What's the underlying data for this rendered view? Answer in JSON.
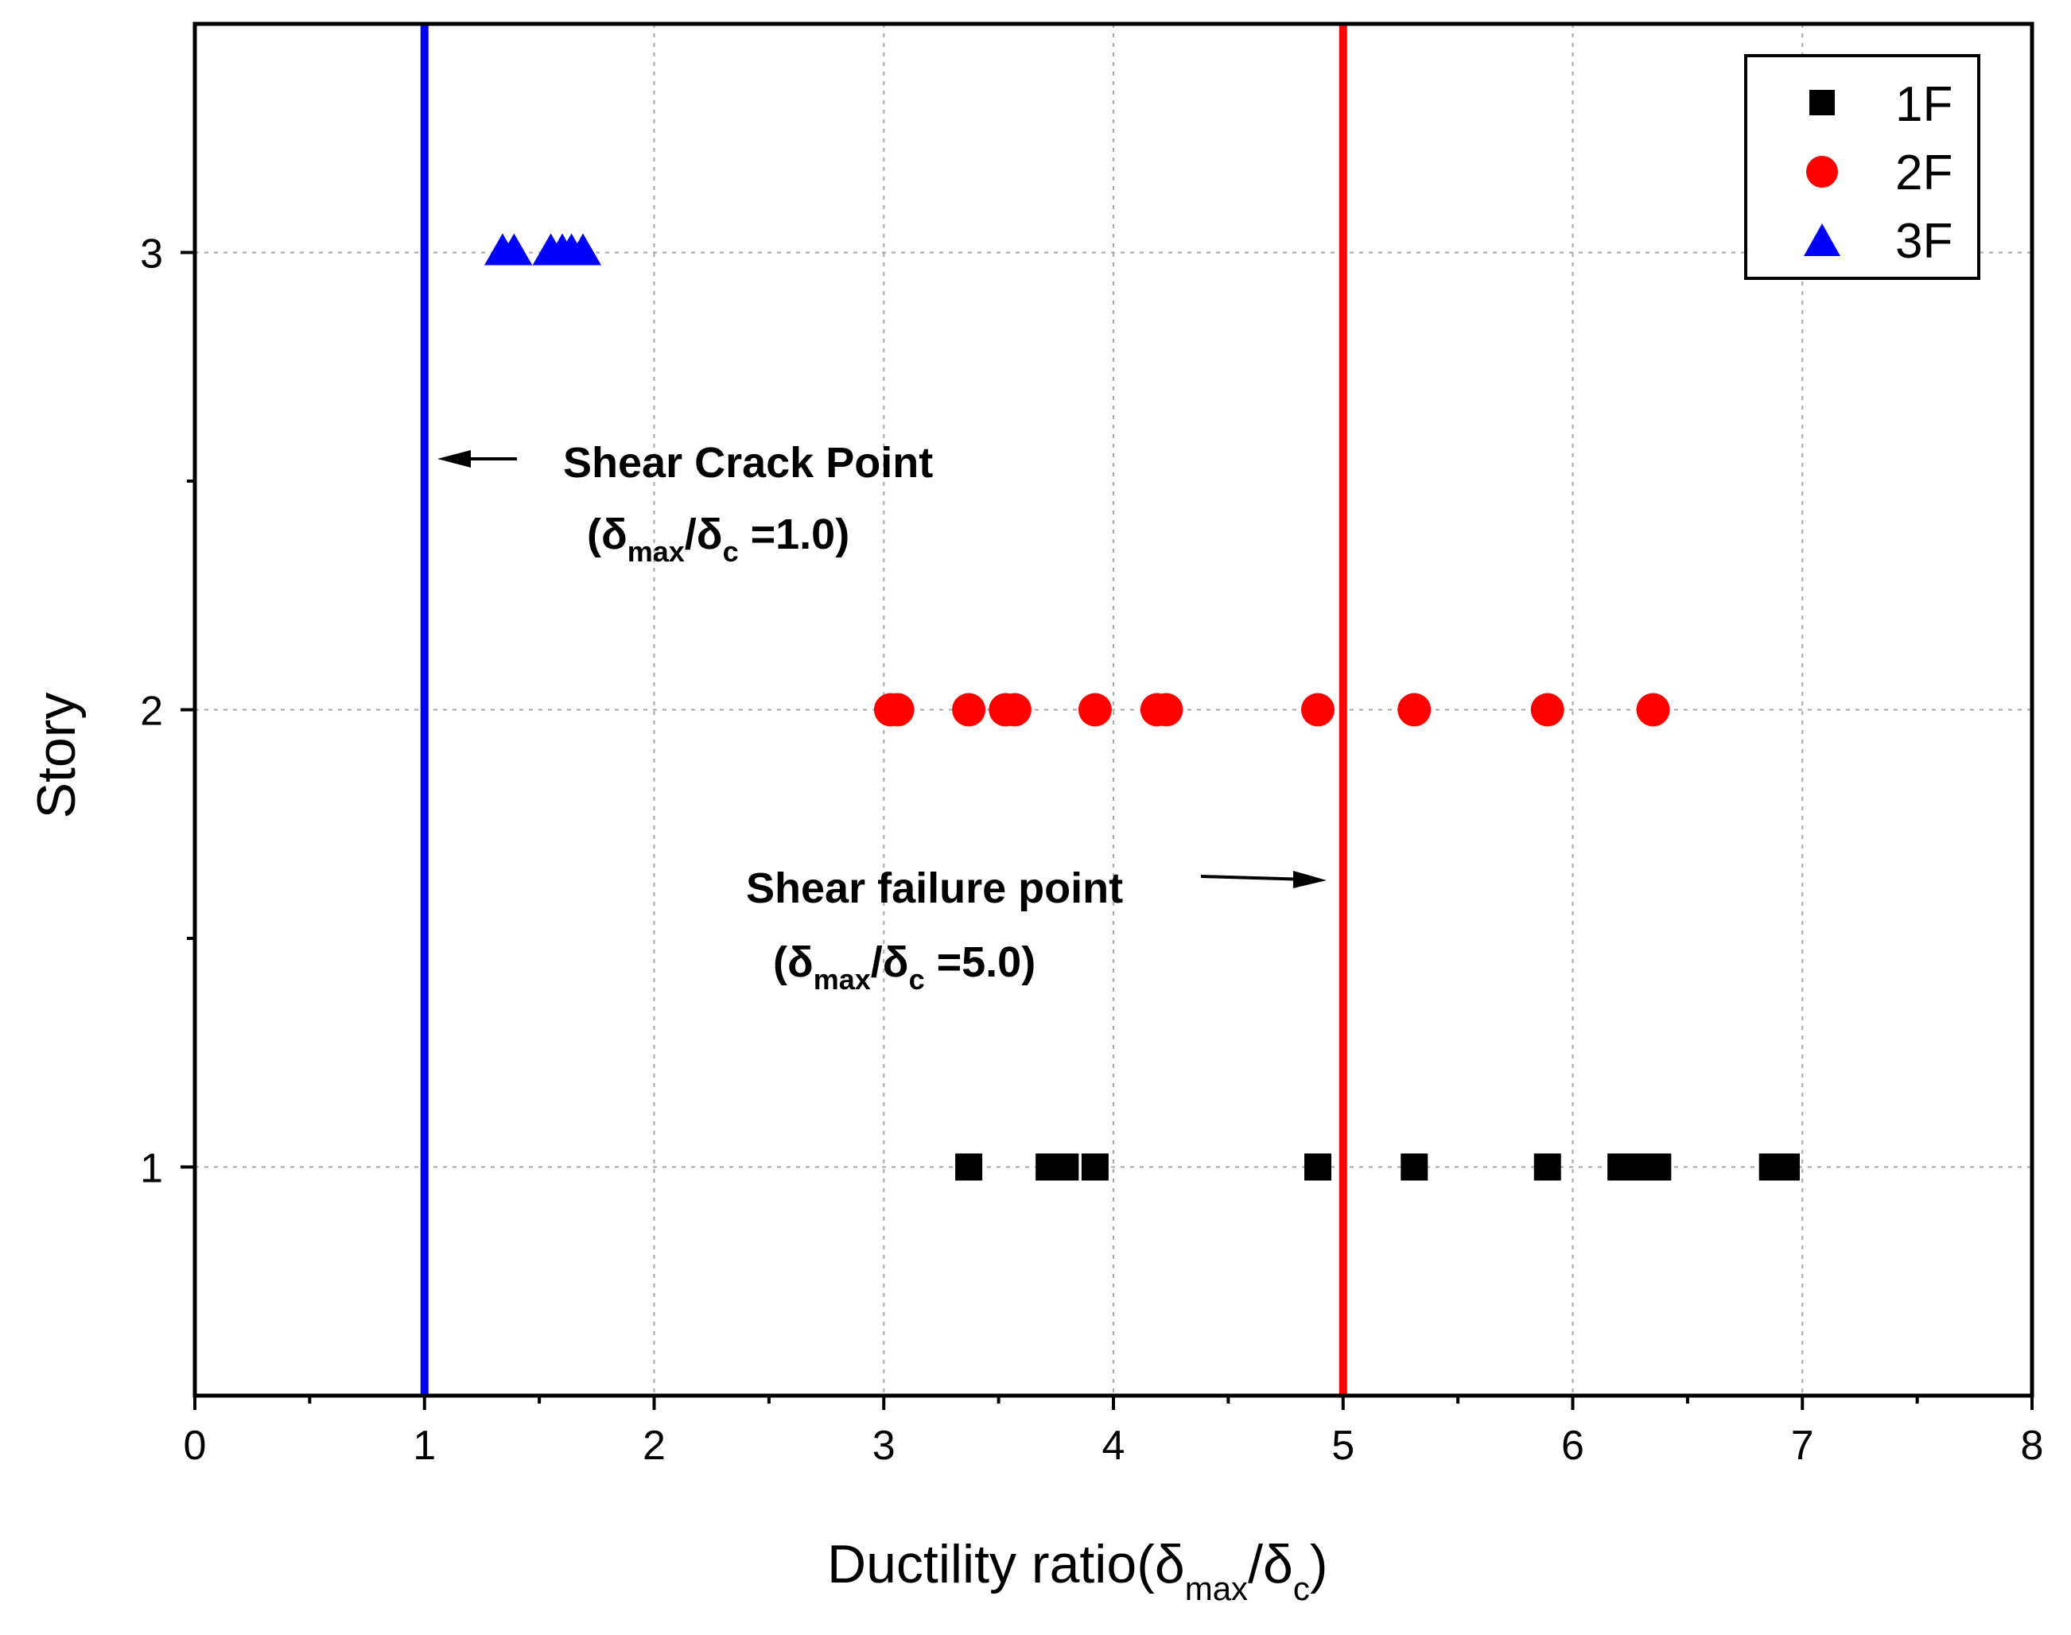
{
  "chart_data": {
    "type": "scatter",
    "title": "",
    "xlabel": {
      "main": "Ductility ratio(δ",
      "sub1": "max",
      "mid": "/δ",
      "sub2": "c",
      "end": ")"
    },
    "ylabel": "Story",
    "xlim": [
      0,
      8
    ],
    "ylim": [
      0.5,
      3.5
    ],
    "xticks": [
      0,
      1,
      2,
      3,
      4,
      5,
      6,
      7,
      8
    ],
    "xtick_labels": [
      "0",
      "1",
      "2",
      "3",
      "4",
      "5",
      "6",
      "7",
      "8"
    ],
    "xminor_step": 0.5,
    "yticks": [
      1,
      2,
      3
    ],
    "ytick_labels": [
      "1",
      "2",
      "3"
    ],
    "yminor_ticks": [
      1.5,
      2.5
    ],
    "grid": true,
    "legend_position": "top-right",
    "series": [
      {
        "name": "1F",
        "marker": "square",
        "color": "#000000",
        "y": 1,
        "x": [
          3.37,
          3.72,
          3.79,
          3.92,
          4.89,
          5.31,
          5.89,
          6.21,
          6.26,
          6.3,
          6.37,
          6.87,
          6.93
        ]
      },
      {
        "name": "2F",
        "marker": "circle",
        "color": "#ff0000",
        "y": 2,
        "x": [
          3.03,
          3.06,
          3.37,
          3.53,
          3.57,
          3.92,
          4.19,
          4.23,
          4.89,
          5.31,
          5.89,
          6.35
        ]
      },
      {
        "name": "3F",
        "marker": "triangle",
        "color": "#0000ff",
        "y": 3,
        "x": [
          1.34,
          1.39,
          1.55,
          1.6,
          1.64,
          1.69
        ]
      }
    ],
    "reference_lines": [
      {
        "x": 1.0,
        "color": "#0000ff"
      },
      {
        "x": 5.0,
        "color": "#ff0000"
      }
    ],
    "annotations": [
      {
        "id": "crack",
        "title": "Shear Crack Point",
        "open": "(δ",
        "sub1": "max",
        "mid": "/δ",
        "sub2": "c",
        "value": " =1.0)"
      },
      {
        "id": "failure",
        "title": "Shear failure point",
        "open": "(δ",
        "sub1": "max",
        "mid": "/δ",
        "sub2": "c",
        "value": " =5.0)"
      }
    ]
  }
}
